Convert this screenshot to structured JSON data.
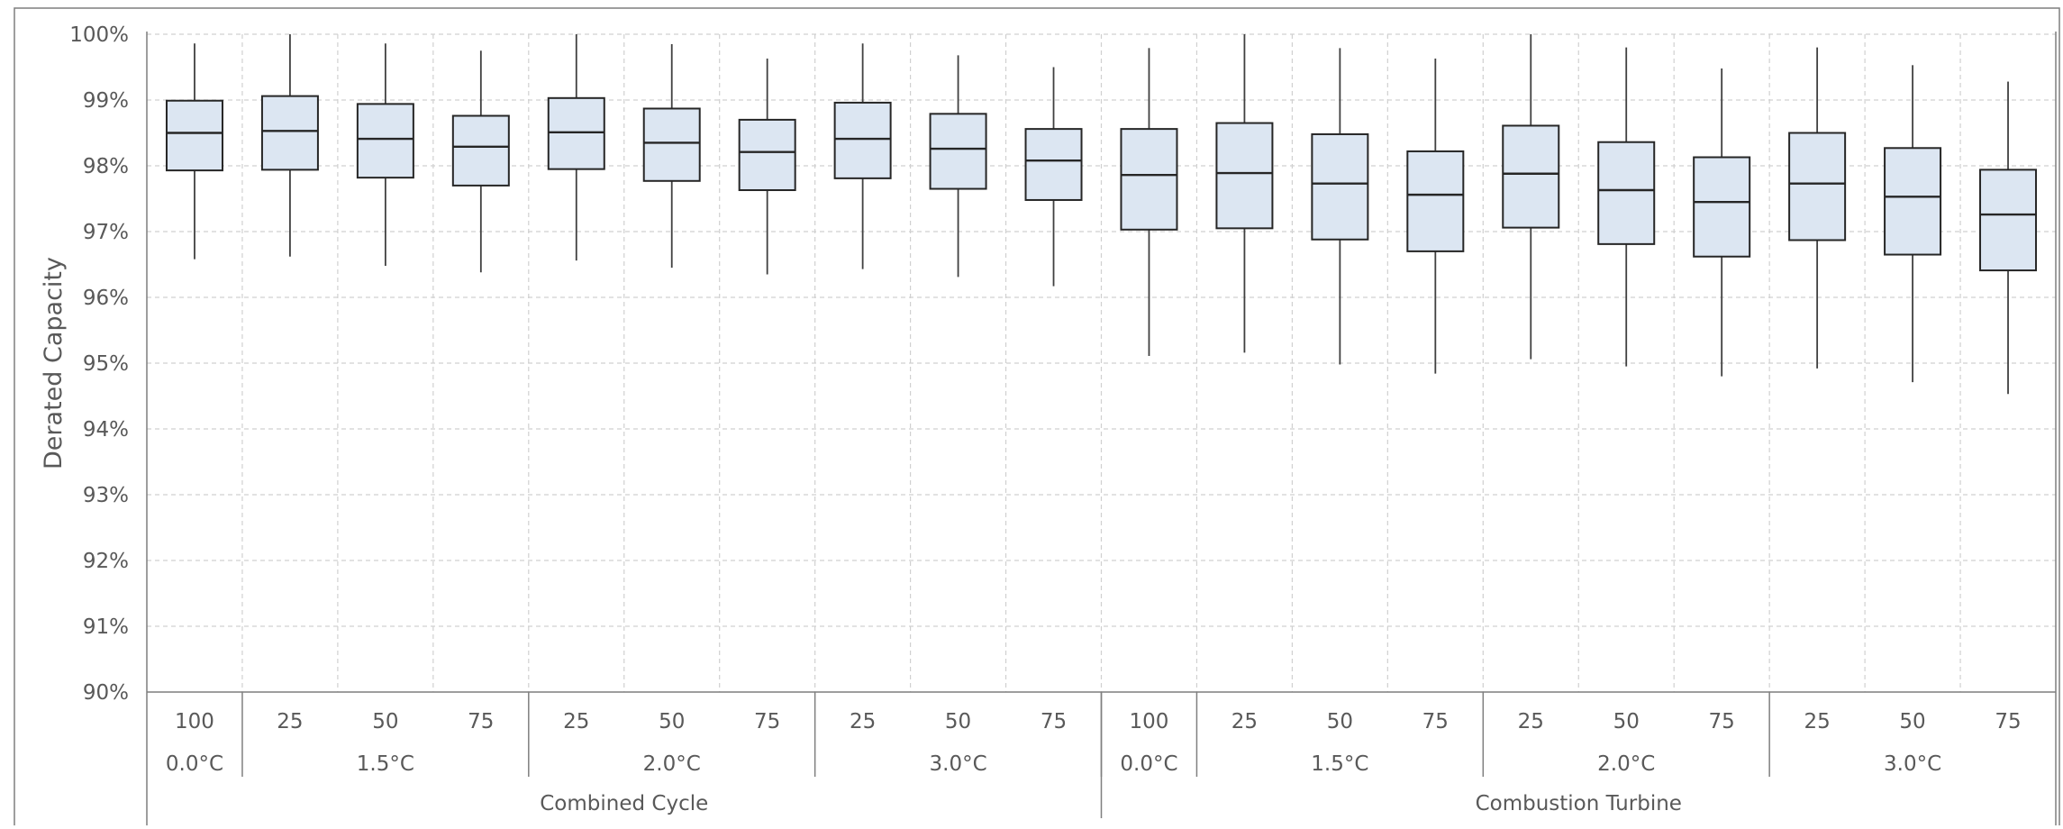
{
  "chart_data": {
    "type": "box",
    "ylabel": "Derated Capacity",
    "ylim": [
      90,
      100
    ],
    "yticks": [
      "90%",
      "91%",
      "92%",
      "93%",
      "94%",
      "95%",
      "96%",
      "97%",
      "98%",
      "99%",
      "100%"
    ],
    "grid": true,
    "levels": [
      {
        "name": "Combined Cycle",
        "span": 10
      },
      {
        "name": "Combustion Turbine",
        "span": 10
      }
    ],
    "groups": [
      {
        "name": "0.0°C",
        "span": 1
      },
      {
        "name": "1.5°C",
        "span": 3
      },
      {
        "name": "2.0°C",
        "span": 3
      },
      {
        "name": "3.0°C",
        "span": 3
      },
      {
        "name": "0.0°C",
        "span": 1
      },
      {
        "name": "1.5°C",
        "span": 3
      },
      {
        "name": "2.0°C",
        "span": 3
      },
      {
        "name": "3.0°C",
        "span": 3
      }
    ],
    "categories": [
      "100",
      "25",
      "50",
      "75",
      "25",
      "50",
      "75",
      "25",
      "50",
      "75",
      "100",
      "25",
      "50",
      "75",
      "25",
      "50",
      "75",
      "25",
      "50",
      "75"
    ],
    "boxes": [
      {
        "min": 96.58,
        "q1": 97.93,
        "median": 98.5,
        "q3": 98.99,
        "max": 99.86
      },
      {
        "min": 96.62,
        "q1": 97.94,
        "median": 98.53,
        "q3": 99.06,
        "max": 100.0
      },
      {
        "min": 96.48,
        "q1": 97.82,
        "median": 98.41,
        "q3": 98.94,
        "max": 99.86
      },
      {
        "min": 96.38,
        "q1": 97.7,
        "median": 98.29,
        "q3": 98.76,
        "max": 99.75
      },
      {
        "min": 96.56,
        "q1": 97.95,
        "median": 98.51,
        "q3": 99.03,
        "max": 100.0
      },
      {
        "min": 96.45,
        "q1": 97.77,
        "median": 98.35,
        "q3": 98.87,
        "max": 99.85
      },
      {
        "min": 96.35,
        "q1": 97.63,
        "median": 98.21,
        "q3": 98.7,
        "max": 99.63
      },
      {
        "min": 96.43,
        "q1": 97.81,
        "median": 98.41,
        "q3": 98.96,
        "max": 99.86
      },
      {
        "min": 96.31,
        "q1": 97.65,
        "median": 98.26,
        "q3": 98.79,
        "max": 99.68
      },
      {
        "min": 96.17,
        "q1": 97.48,
        "median": 98.08,
        "q3": 98.56,
        "max": 99.5
      },
      {
        "min": 95.11,
        "q1": 97.03,
        "median": 97.86,
        "q3": 98.56,
        "max": 99.79
      },
      {
        "min": 95.16,
        "q1": 97.05,
        "median": 97.89,
        "q3": 98.65,
        "max": 100.0
      },
      {
        "min": 94.98,
        "q1": 96.88,
        "median": 97.73,
        "q3": 98.48,
        "max": 99.79
      },
      {
        "min": 94.84,
        "q1": 96.7,
        "median": 97.56,
        "q3": 98.22,
        "max": 99.63
      },
      {
        "min": 95.06,
        "q1": 97.06,
        "median": 97.88,
        "q3": 98.61,
        "max": 100.0
      },
      {
        "min": 94.95,
        "q1": 96.81,
        "median": 97.63,
        "q3": 98.36,
        "max": 99.8
      },
      {
        "min": 94.8,
        "q1": 96.62,
        "median": 97.45,
        "q3": 98.13,
        "max": 99.48
      },
      {
        "min": 94.92,
        "q1": 96.87,
        "median": 97.73,
        "q3": 98.5,
        "max": 99.8
      },
      {
        "min": 94.71,
        "q1": 96.65,
        "median": 97.53,
        "q3": 98.27,
        "max": 99.53
      },
      {
        "min": 94.53,
        "q1": 96.41,
        "median": 97.26,
        "q3": 97.94,
        "max": 99.28
      }
    ]
  }
}
